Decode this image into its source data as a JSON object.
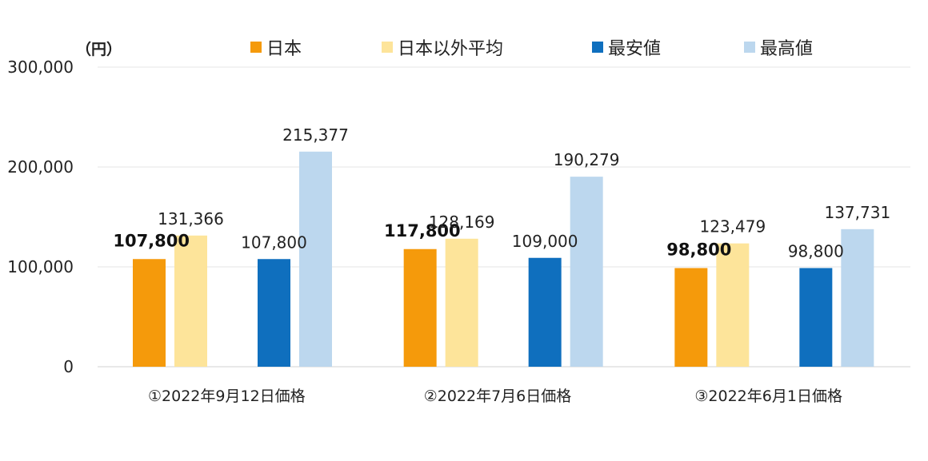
{
  "chart_data": {
    "type": "bar",
    "unit_label": "（円）",
    "categories": [
      "①2022年9月12日価格",
      "②2022年7月6日価格",
      "③2022年6月1日価格"
    ],
    "series": [
      {
        "name": "日本",
        "color": "#f59a0b",
        "values": [
          107800,
          117800,
          98800
        ],
        "label_bold": true
      },
      {
        "name": "日本以外平均",
        "color": "#fde49a",
        "values": [
          131366,
          128169,
          123479
        ]
      },
      {
        "name": "最安値",
        "color": "#0f6fbe",
        "values": [
          107800,
          109000,
          98800
        ]
      },
      {
        "name": "最高値",
        "color": "#bcd7ee",
        "values": [
          215377,
          190279,
          137731
        ]
      }
    ],
    "data_labels": [
      [
        "107,800",
        "117,800",
        "98,800"
      ],
      [
        "131,366",
        "128,169",
        "123,479"
      ],
      [
        "107,800",
        "109,000",
        "98,800"
      ],
      [
        "215,377",
        "190,279",
        "137,731"
      ]
    ],
    "ylim": [
      0,
      300000
    ],
    "yticks": [
      0,
      100000,
      200000,
      300000
    ],
    "ytick_labels": [
      "0",
      "100,000",
      "200,000",
      "300,000"
    ],
    "grid": true,
    "legend_position": "top"
  }
}
